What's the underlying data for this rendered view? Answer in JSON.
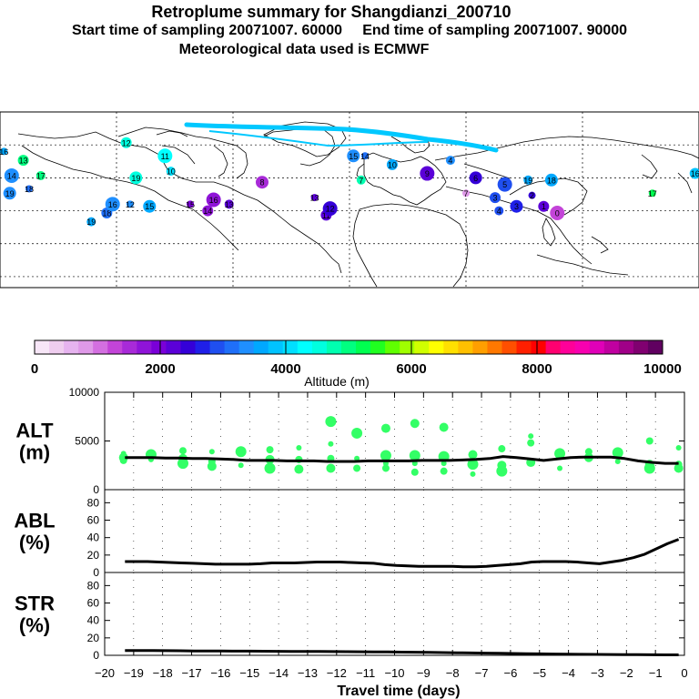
{
  "header": {
    "title": "Retroplume summary for Shangdianzi_200710",
    "sampling_start_label": "Start time of sampling",
    "sampling_start_value": "20071007. 60000",
    "sampling_end_label": "End time of sampling",
    "sampling_end_value": "20071007. 90000",
    "met_data": "Meteorological data used is ECMWF"
  },
  "colorbar": {
    "label": "Altitude (m)",
    "ticks": [
      "0",
      "2000",
      "4000",
      "6000",
      "8000",
      "10000"
    ],
    "colors": [
      "#f7e6f7",
      "#efcdef",
      "#e6b3ef",
      "#df99e8",
      "#d36fe0",
      "#c344d8",
      "#a82ad8",
      "#8f14d8",
      "#7a00d8",
      "#5b00d8",
      "#3400d8",
      "#1f1fe8",
      "#1f4ff0",
      "#1f6ff8",
      "#1f8fff",
      "#00a8ff",
      "#00c3ff",
      "#00dfff",
      "#00ffff",
      "#00ffdf",
      "#00ffb0",
      "#00ff80",
      "#00ff50",
      "#20ff20",
      "#60ff00",
      "#a0ff00",
      "#d0ff00",
      "#ffff00",
      "#ffe000",
      "#ffc000",
      "#ff9f00",
      "#ff7800",
      "#ff4f00",
      "#ff1f00",
      "#ff0000",
      "#ff0070",
      "#ff0099",
      "#f800b0",
      "#e000b8",
      "#c000a0",
      "#a00088",
      "#800070",
      "#600060"
    ]
  },
  "map": {
    "land_color": "#ffffff",
    "markers": [
      {
        "label": "16",
        "lon": -178,
        "lat": 72,
        "alt": 3700
      },
      {
        "label": "13",
        "lon": -168,
        "lat": 68,
        "alt": 4900
      },
      {
        "label": "14",
        "lon": -174,
        "lat": 61,
        "alt": 3300
      },
      {
        "label": "17",
        "lon": -159,
        "lat": 61,
        "alt": 4900
      },
      {
        "label": "19",
        "lon": -175,
        "lat": 53,
        "alt": 3300
      },
      {
        "label": "18",
        "lon": -165,
        "lat": 55,
        "alt": 3100
      },
      {
        "label": "12",
        "lon": -115,
        "lat": 76,
        "alt": 4500
      },
      {
        "label": "11",
        "lon": -95,
        "lat": 70,
        "alt": 4300
      },
      {
        "label": "10",
        "lon": -92,
        "lat": 63,
        "alt": 4000
      },
      {
        "label": "19",
        "lon": -110,
        "lat": 60,
        "alt": 4500
      },
      {
        "label": "12",
        "lon": -113,
        "lat": 48,
        "alt": 3400
      },
      {
        "label": "18",
        "lon": -125,
        "lat": 44,
        "alt": 3100
      },
      {
        "label": "16",
        "lon": -122,
        "lat": 48,
        "alt": 3300
      },
      {
        "label": "19",
        "lon": -133,
        "lat": 40,
        "alt": 3500
      },
      {
        "label": "15",
        "lon": -103,
        "lat": 47,
        "alt": 3600
      },
      {
        "label": "15",
        "lon": -82,
        "lat": 48,
        "alt": 2000
      },
      {
        "label": "14",
        "lon": -73,
        "lat": 45,
        "alt": 1700
      },
      {
        "label": "16",
        "lon": -70,
        "lat": 50,
        "alt": 1800
      },
      {
        "label": "13",
        "lon": -62,
        "lat": 48,
        "alt": 2200
      },
      {
        "label": "8",
        "lon": -45,
        "lat": 58,
        "alt": 1500
      },
      {
        "label": "13",
        "lon": -18,
        "lat": 51,
        "alt": 2300
      },
      {
        "label": "11",
        "lon": -12,
        "lat": 43,
        "alt": 2200
      },
      {
        "label": "12",
        "lon": -10,
        "lat": 46,
        "alt": 2500
      },
      {
        "label": "7",
        "lon": 6,
        "lat": 59,
        "alt": 4800
      },
      {
        "label": "15",
        "lon": 2,
        "lat": 70,
        "alt": 3300
      },
      {
        "label": "14",
        "lon": 8,
        "lat": 70,
        "alt": 3200
      },
      {
        "label": "10",
        "lon": 22,
        "lat": 66,
        "alt": 3500
      },
      {
        "label": "9",
        "lon": 40,
        "lat": 62,
        "alt": 2300
      },
      {
        "label": "4",
        "lon": 52,
        "lat": 68,
        "alt": 3400
      },
      {
        "label": "6",
        "lon": 65,
        "lat": 60,
        "alt": 2500
      },
      {
        "label": "7",
        "lon": 60,
        "lat": 53,
        "alt": 800
      },
      {
        "label": "3",
        "lon": 75,
        "lat": 51,
        "alt": 3000
      },
      {
        "label": "5",
        "lon": 80,
        "lat": 57,
        "alt": 2800
      },
      {
        "label": "4",
        "lon": 77,
        "lat": 45,
        "alt": 3000
      },
      {
        "label": "3",
        "lon": 86,
        "lat": 47,
        "alt": 2700
      },
      {
        "label": "2",
        "lon": 94,
        "lat": 52,
        "alt": 2400
      },
      {
        "label": "1",
        "lon": 100,
        "lat": 47,
        "alt": 2300
      },
      {
        "label": "0",
        "lon": 107,
        "lat": 44,
        "alt": 1300
      },
      {
        "label": "19",
        "lon": 92,
        "lat": 59,
        "alt": 3500
      },
      {
        "label": "18",
        "lon": 104,
        "lat": 59,
        "alt": 3600
      },
      {
        "label": "17",
        "lon": 156,
        "lat": 53,
        "alt": 5200
      },
      {
        "label": "16",
        "lon": 178,
        "lat": 62,
        "alt": 3800
      }
    ]
  },
  "plots": {
    "alt": {
      "label_line1": "ALT",
      "label_line2": "(m)",
      "y_ticks": [
        "0",
        "5000",
        "10000"
      ],
      "ymax": 10000,
      "line_y": [
        3300,
        3300,
        3300,
        3250,
        3250,
        3200,
        3200,
        3150,
        3100,
        3000,
        3000,
        3000,
        2950,
        2950,
        2950,
        2900,
        2900,
        2900,
        2950,
        2950,
        2950,
        2950,
        3000,
        3000,
        3000,
        3050,
        3100,
        3200,
        3400,
        3300,
        3150,
        3000,
        3150,
        3300,
        3350,
        3350,
        3350,
        3200,
        2950,
        2800,
        2700,
        2700
      ],
      "dots": [
        {
          "x": -19.35,
          "y": 3700
        },
        {
          "x": -19.35,
          "y": 3000
        },
        {
          "x": -19.35,
          "y": 3300
        },
        {
          "x": -18.4,
          "y": 3600
        },
        {
          "x": -18.4,
          "y": 3100
        },
        {
          "x": -17.3,
          "y": 4000
        },
        {
          "x": -17.3,
          "y": 3200
        },
        {
          "x": -17.3,
          "y": 2700
        },
        {
          "x": -16.3,
          "y": 3900
        },
        {
          "x": -16.3,
          "y": 2900
        },
        {
          "x": -16.3,
          "y": 2400
        },
        {
          "x": -15.3,
          "y": 3900
        },
        {
          "x": -15.3,
          "y": 2500
        },
        {
          "x": -14.3,
          "y": 4100
        },
        {
          "x": -14.3,
          "y": 3100
        },
        {
          "x": -14.3,
          "y": 2200
        },
        {
          "x": -13.3,
          "y": 4300
        },
        {
          "x": -13.3,
          "y": 3100
        },
        {
          "x": -13.3,
          "y": 2100
        },
        {
          "x": -12.2,
          "y": 7000
        },
        {
          "x": -12.2,
          "y": 4700
        },
        {
          "x": -12.2,
          "y": 3200
        },
        {
          "x": -12.2,
          "y": 2200
        },
        {
          "x": -11.3,
          "y": 5800
        },
        {
          "x": -11.3,
          "y": 3200
        },
        {
          "x": -11.3,
          "y": 2200
        },
        {
          "x": -10.3,
          "y": 6300
        },
        {
          "x": -10.3,
          "y": 3500
        },
        {
          "x": -10.3,
          "y": 2700
        },
        {
          "x": -10.3,
          "y": 2200
        },
        {
          "x": -9.3,
          "y": 6800
        },
        {
          "x": -9.3,
          "y": 3500
        },
        {
          "x": -9.3,
          "y": 2700
        },
        {
          "x": -9.3,
          "y": 1800
        },
        {
          "x": -8.3,
          "y": 6400
        },
        {
          "x": -8.3,
          "y": 3400
        },
        {
          "x": -8.3,
          "y": 2700
        },
        {
          "x": -8.3,
          "y": 1900
        },
        {
          "x": -7.3,
          "y": 3600
        },
        {
          "x": -7.3,
          "y": 2600
        },
        {
          "x": -7.3,
          "y": 1600
        },
        {
          "x": -6.3,
          "y": 4200
        },
        {
          "x": -6.3,
          "y": 2500
        },
        {
          "x": -6.3,
          "y": 1900
        },
        {
          "x": -5.3,
          "y": 5500
        },
        {
          "x": -5.3,
          "y": 4800
        },
        {
          "x": -5.3,
          "y": 2800
        },
        {
          "x": -4.3,
          "y": 3700
        },
        {
          "x": -4.3,
          "y": 2200
        },
        {
          "x": -3.3,
          "y": 3900
        },
        {
          "x": -3.3,
          "y": 3300
        },
        {
          "x": -2.3,
          "y": 3800
        },
        {
          "x": -2.3,
          "y": 2900
        },
        {
          "x": -1.2,
          "y": 5000
        },
        {
          "x": -1.2,
          "y": 2600
        },
        {
          "x": -1.2,
          "y": 2200
        },
        {
          "x": -0.2,
          "y": 4300
        },
        {
          "x": -0.2,
          "y": 2600
        },
        {
          "x": -0.2,
          "y": 2200
        }
      ]
    },
    "abl": {
      "label_line1": "ABL",
      "label_line2": "(%)",
      "y_ticks": [
        "0",
        "20",
        "40",
        "60",
        "80"
      ],
      "ymax": 95,
      "line_y": [
        12.5,
        12.5,
        12.5,
        12,
        11.5,
        11,
        10.5,
        10,
        9.5,
        9.5,
        9.5,
        9.5,
        10,
        11,
        11,
        11,
        11.5,
        12,
        12,
        12,
        11.5,
        11,
        10.5,
        9,
        8,
        7.5,
        7,
        7,
        7,
        7,
        6.5,
        6.5,
        7,
        8,
        9,
        10,
        12,
        12.5,
        12.5,
        12.5,
        12,
        11,
        10,
        12,
        14,
        17,
        21,
        27,
        33,
        38
      ]
    },
    "str": {
      "label_line1": "STR",
      "label_line2": "(%)",
      "y_ticks": [
        "0",
        "20",
        "40",
        "60",
        "80"
      ],
      "ymax": 95,
      "line_y": [
        5.5,
        5.5,
        5.5,
        5.3,
        5.2,
        5,
        5,
        4.9,
        4.8,
        4.8,
        4.7,
        4.6,
        4.5,
        4.5,
        4.4,
        4.3,
        4.2,
        4.1,
        4.0,
        3.9,
        3.7,
        3.5,
        3.3,
        3.1,
        2.9,
        2.7,
        2.5,
        2.3,
        2.1,
        1.9,
        1.7,
        1.5,
        1.3,
        1.1,
        1.0,
        0.9,
        0.8,
        0.7,
        0.6,
        0.5,
        0.5
      ]
    },
    "x_ticks": [
      "-20",
      "-19",
      "-18",
      "-17",
      "-16",
      "-15",
      "-14",
      "-13",
      "-12",
      "-11",
      "-10",
      "-9",
      "-8",
      "-7",
      "-6",
      "-5",
      "-4",
      "-3",
      "-2",
      "-1",
      "0"
    ],
    "x_label": "Travel time (days)",
    "dot_color": "#33ff66",
    "line_color": "#000000"
  }
}
